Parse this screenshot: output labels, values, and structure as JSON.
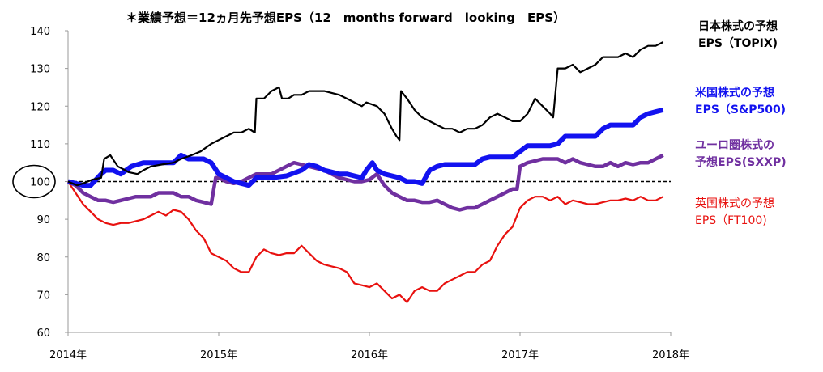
{
  "chart_data": {
    "type": "line",
    "subtitle": "＊業績予想＝12ヵ月先予想EPS（12　months forward　looking　EPS）",
    "ylim": [
      60,
      140
    ],
    "yticks": [
      "60",
      "70",
      "80",
      "90",
      "100",
      "110",
      "120",
      "130",
      "140"
    ],
    "xlim": [
      2014.0,
      2018.0
    ],
    "xticks": [
      "2014年",
      "2015年",
      "2016年",
      "2017年",
      "2018年"
    ],
    "reference_line": 100,
    "highlighted_tick": "100",
    "grid": false,
    "legend_position": "right",
    "series": [
      {
        "name_lines": [
          "日本株式の予想",
          "EPS（TOPIX)"
        ],
        "color": "#000000",
        "x": [
          2014.0,
          2014.06,
          2014.1,
          2014.16,
          2014.22,
          2014.24,
          2014.28,
          2014.33,
          2014.38,
          2014.4,
          2014.46,
          2014.5,
          2014.55,
          2014.62,
          2014.7,
          2014.75,
          2014.82,
          2014.88,
          2014.95,
          2015.0,
          2015.05,
          2015.1,
          2015.15,
          2015.2,
          2015.24,
          2015.25,
          2015.3,
          2015.35,
          2015.4,
          2015.42,
          2015.46,
          2015.5,
          2015.55,
          2015.6,
          2015.65,
          2015.7,
          2015.75,
          2015.8,
          2015.85,
          2015.9,
          2015.95,
          2015.98,
          2016.05,
          2016.1,
          2016.15,
          2016.18,
          2016.2,
          2016.21,
          2016.25,
          2016.3,
          2016.35,
          2016.4,
          2016.45,
          2016.5,
          2016.55,
          2016.6,
          2016.65,
          2016.7,
          2016.75,
          2016.8,
          2016.85,
          2016.9,
          2016.95,
          2017.0,
          2017.05,
          2017.1,
          2017.15,
          2017.2,
          2017.22,
          2017.25,
          2017.3,
          2017.35,
          2017.4,
          2017.45,
          2017.5,
          2017.55,
          2017.6,
          2017.65,
          2017.7,
          2017.75,
          2017.8,
          2017.85,
          2017.9,
          2017.95
        ],
        "values": [
          100,
          99,
          99.5,
          100.5,
          101,
          106,
          107,
          104,
          103,
          102.5,
          102,
          103,
          104,
          104.5,
          105,
          106,
          107,
          108,
          110,
          111,
          112,
          113,
          113,
          114,
          113,
          122,
          122,
          124,
          125,
          122,
          122,
          123,
          123,
          124,
          124,
          124,
          123.5,
          123,
          122,
          121,
          120,
          121,
          120,
          118,
          114,
          112,
          111,
          124,
          122,
          119,
          117,
          116,
          115,
          114,
          114,
          113,
          114,
          114,
          115,
          117,
          118,
          117,
          116,
          116,
          118,
          122,
          120,
          118,
          117,
          130,
          130,
          131,
          129,
          130,
          131,
          133,
          133,
          133,
          134,
          133,
          135,
          136,
          136,
          137
        ]
      },
      {
        "name_lines": [
          "米国株式の予想",
          "EPS（S&P500)"
        ],
        "color": "#1212f0",
        "x": [
          2014.0,
          2014.05,
          2014.1,
          2014.15,
          2014.22,
          2014.25,
          2014.3,
          2014.35,
          2014.42,
          2014.5,
          2014.6,
          2014.7,
          2014.75,
          2014.8,
          2014.85,
          2014.9,
          2014.95,
          2015.0,
          2015.05,
          2015.1,
          2015.15,
          2015.2,
          2015.25,
          2015.3,
          2015.35,
          2015.45,
          2015.55,
          2015.6,
          2015.65,
          2015.7,
          2015.75,
          2015.8,
          2015.85,
          2015.9,
          2015.95,
          2015.98,
          2016.02,
          2016.05,
          2016.1,
          2016.15,
          2016.2,
          2016.25,
          2016.3,
          2016.35,
          2016.4,
          2016.45,
          2016.5,
          2016.55,
          2016.6,
          2016.65,
          2016.7,
          2016.75,
          2016.8,
          2016.85,
          2016.9,
          2016.95,
          2017.0,
          2017.05,
          2017.1,
          2017.15,
          2017.2,
          2017.25,
          2017.3,
          2017.35,
          2017.4,
          2017.45,
          2017.5,
          2017.55,
          2017.6,
          2017.65,
          2017.7,
          2017.75,
          2017.8,
          2017.85,
          2017.9,
          2017.95
        ],
        "values": [
          100,
          99.5,
          99,
          99,
          102,
          103,
          103,
          102,
          104,
          105,
          105,
          105,
          107,
          106,
          106,
          106,
          105,
          102,
          101,
          100,
          99.5,
          99,
          101,
          101,
          101,
          101.5,
          103,
          104.5,
          104,
          103,
          102.5,
          102,
          102,
          101.5,
          101,
          103,
          105,
          103,
          102,
          101.5,
          101,
          100,
          100,
          99.5,
          103,
          104,
          104.5,
          104.5,
          104.5,
          104.5,
          104.5,
          106,
          106.5,
          106.5,
          106.5,
          106.5,
          108,
          109.5,
          109.5,
          109.5,
          109.5,
          110,
          112,
          112,
          112,
          112,
          112,
          114,
          115,
          115,
          115,
          115,
          117,
          118,
          118.5,
          119
        ]
      },
      {
        "name_lines": [
          "ユーロ圏株式の",
          "予想EPS(SXXP)"
        ],
        "color": "#7030a0",
        "x": [
          2014.0,
          2014.05,
          2014.1,
          2014.15,
          2014.2,
          2014.25,
          2014.3,
          2014.35,
          2014.4,
          2014.45,
          2014.5,
          2014.55,
          2014.6,
          2014.65,
          2014.7,
          2014.75,
          2014.8,
          2014.85,
          2014.9,
          2014.95,
          2014.98,
          2015.0,
          2015.05,
          2015.1,
          2015.15,
          2015.2,
          2015.25,
          2015.3,
          2015.35,
          2015.4,
          2015.45,
          2015.5,
          2015.55,
          2015.6,
          2015.65,
          2015.7,
          2015.75,
          2015.8,
          2015.85,
          2015.9,
          2015.95,
          2016.0,
          2016.05,
          2016.1,
          2016.15,
          2016.2,
          2016.25,
          2016.3,
          2016.35,
          2016.4,
          2016.45,
          2016.5,
          2016.55,
          2016.6,
          2016.65,
          2016.7,
          2016.75,
          2016.8,
          2016.85,
          2016.9,
          2016.95,
          2016.98,
          2017.0,
          2017.05,
          2017.1,
          2017.15,
          2017.2,
          2017.25,
          2017.3,
          2017.35,
          2017.4,
          2017.45,
          2017.5,
          2017.55,
          2017.6,
          2017.65,
          2017.7,
          2017.75,
          2017.8,
          2017.85,
          2017.9,
          2017.95
        ],
        "values": [
          100,
          99,
          97,
          96,
          95,
          95,
          94.5,
          95,
          95.5,
          96,
          96,
          96,
          97,
          97,
          97,
          96,
          96,
          95,
          94.5,
          94,
          101,
          101,
          100,
          99.5,
          100,
          101,
          102,
          102,
          102,
          103,
          104,
          105,
          104.5,
          104,
          103.5,
          103,
          102,
          101,
          100.5,
          100,
          100,
          100.5,
          102,
          99,
          97,
          96,
          95,
          95,
          94.5,
          94.5,
          95,
          94,
          93,
          92.5,
          93,
          93,
          94,
          95,
          96,
          97,
          98,
          98,
          104,
          105,
          105.5,
          106,
          106,
          106,
          105,
          106,
          105,
          104.5,
          104,
          104,
          105,
          104,
          105,
          104.5,
          105,
          105,
          106,
          107
        ]
      },
      {
        "name_lines": [
          "英国株式の予想",
          "EPS（FT100)"
        ],
        "color": "#e8110f",
        "x": [
          2014.0,
          2014.05,
          2014.1,
          2014.15,
          2014.2,
          2014.25,
          2014.3,
          2014.35,
          2014.4,
          2014.45,
          2014.5,
          2014.55,
          2014.6,
          2014.65,
          2014.7,
          2014.75,
          2014.8,
          2014.85,
          2014.9,
          2014.95,
          2015.0,
          2015.05,
          2015.1,
          2015.15,
          2015.2,
          2015.25,
          2015.3,
          2015.35,
          2015.4,
          2015.45,
          2015.5,
          2015.55,
          2015.6,
          2015.65,
          2015.7,
          2015.75,
          2015.8,
          2015.85,
          2015.9,
          2015.95,
          2016.0,
          2016.05,
          2016.1,
          2016.15,
          2016.2,
          2016.25,
          2016.3,
          2016.35,
          2016.4,
          2016.45,
          2016.5,
          2016.55,
          2016.6,
          2016.65,
          2016.7,
          2016.75,
          2016.8,
          2016.85,
          2016.9,
          2016.95,
          2017.0,
          2017.05,
          2017.1,
          2017.15,
          2017.2,
          2017.25,
          2017.3,
          2017.35,
          2017.4,
          2017.45,
          2017.5,
          2017.55,
          2017.6,
          2017.65,
          2017.7,
          2017.75,
          2017.8,
          2017.85,
          2017.9,
          2017.95
        ],
        "values": [
          100,
          97,
          94,
          92,
          90,
          89,
          88.5,
          89,
          89,
          89.5,
          90,
          91,
          92,
          91,
          92.5,
          92,
          90,
          87,
          85,
          81,
          80,
          79,
          77,
          76,
          76,
          80,
          82,
          81,
          80.5,
          81,
          81,
          83,
          81,
          79,
          78,
          77.5,
          77,
          76,
          73,
          72.5,
          72,
          73,
          71,
          69,
          70,
          68,
          71,
          72,
          71,
          71,
          73,
          74,
          75,
          76,
          76,
          78,
          79,
          83,
          86,
          88,
          93,
          95,
          96,
          96,
          95,
          96,
          94,
          95,
          94.5,
          94,
          94,
          94.5,
          95,
          95,
          95.5,
          95,
          96,
          95,
          95,
          96
        ]
      }
    ]
  }
}
